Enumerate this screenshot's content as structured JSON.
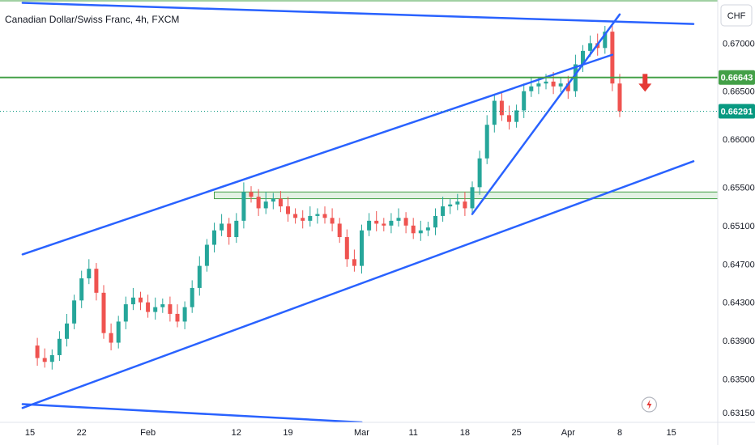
{
  "header": {
    "symbol_title": "Canadian Dollar/Swiss Franc, 4h, FXCM",
    "currency": "CHF"
  },
  "colors": {
    "up_candle": "#26a69a",
    "down_candle": "#ef5350",
    "trendline": "#2962ff",
    "support_resistance": "#43a047",
    "zone_fill": "#c8e6c9",
    "last_price_badge": "#089981",
    "arrow": "#e53935",
    "axis_text": "#131722"
  },
  "chart_data": {
    "type": "candlestick",
    "title": "Canadian Dollar/Swiss Franc, 4h, FXCM",
    "y_axis": {
      "unit": "CHF",
      "ylim": [
        0.6305,
        0.6745
      ],
      "ticks": [
        "0.67000",
        "0.66500",
        "0.66000",
        "0.65500",
        "0.65100",
        "0.64700",
        "0.64300",
        "0.63900",
        "0.63500",
        "0.63150"
      ],
      "tick_values": [
        0.67,
        0.665,
        0.66,
        0.655,
        0.651,
        0.647,
        0.643,
        0.639,
        0.635,
        0.6315
      ]
    },
    "x_axis": {
      "ticks": [
        "15",
        "22",
        "Feb",
        "12",
        "19",
        "Mar",
        "11",
        "18",
        "25",
        "Apr",
        "8",
        "15"
      ],
      "tick_positions": [
        0,
        7,
        16,
        28,
        35,
        45,
        52,
        59,
        66,
        73,
        80,
        87
      ]
    },
    "candle_closes": [
      0.6385,
      0.6372,
      0.6368,
      0.6375,
      0.6392,
      0.6408,
      0.6432,
      0.6455,
      0.6465,
      0.644,
      0.6398,
      0.6388,
      0.641,
      0.6428,
      0.6435,
      0.643,
      0.642,
      0.6425,
      0.6428,
      0.6418,
      0.641,
      0.6425,
      0.6445,
      0.6468,
      0.649,
      0.6505,
      0.6512,
      0.6498,
      0.6515,
      0.6545,
      0.654,
      0.6528,
      0.6535,
      0.6538,
      0.653,
      0.6522,
      0.6518,
      0.6515,
      0.652,
      0.6522,
      0.6518,
      0.6512,
      0.6498,
      0.6475,
      0.6468,
      0.6505,
      0.6515,
      0.6512,
      0.651,
      0.6515,
      0.6518,
      0.651,
      0.6502,
      0.6505,
      0.6508,
      0.652,
      0.653,
      0.6532,
      0.6535,
      0.6528,
      0.655,
      0.658,
      0.6615,
      0.664,
      0.6625,
      0.6618,
      0.663,
      0.665,
      0.6655,
      0.6658,
      0.666,
      0.6655,
      0.6658,
      0.665,
      0.6678,
      0.6692,
      0.67,
      0.6695,
      0.6712,
      0.6658,
      0.6629
    ],
    "levels": [
      {
        "label": "0.66643",
        "value": 0.66643,
        "kind": "resistance"
      },
      {
        "label": "0.66291",
        "value": 0.66291,
        "kind": "last_price"
      }
    ],
    "zone": {
      "from": 0.6538,
      "to": 0.6545
    },
    "trendlines": [
      {
        "name": "channel-top",
        "from": [
          -1,
          0.648
        ],
        "to": [
          79,
          0.6688
        ]
      },
      {
        "name": "channel-bottom",
        "from": [
          -1,
          0.632
        ],
        "to": [
          90,
          0.6577
        ]
      },
      {
        "name": "descending-top",
        "from": [
          -1,
          0.6742
        ],
        "to": [
          90,
          0.672
        ]
      },
      {
        "name": "descending-bottom",
        "from": [
          -1,
          0.6324
        ],
        "to": [
          45,
          0.6305
        ]
      },
      {
        "name": "rising-wedge",
        "from": [
          60,
          0.6522
        ],
        "to": [
          80,
          0.673
        ]
      }
    ],
    "grid": false
  }
}
